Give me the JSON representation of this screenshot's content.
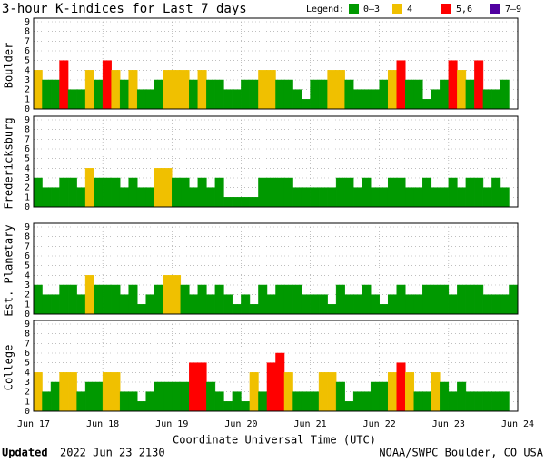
{
  "title": "3-hour K-indices for Last 7 days",
  "legend_title": "Legend:",
  "legend": [
    {
      "label": "0–3",
      "color": "#009900",
      "min": 0,
      "max": 3
    },
    {
      "label": "4",
      "color": "#f0c000",
      "min": 4,
      "max": 4
    },
    {
      "label": "5,6",
      "color": "#ff0000",
      "min": 5,
      "max": 6
    },
    {
      "label": "7–9",
      "color": "#5000a0",
      "min": 7,
      "max": 9
    }
  ],
  "xlabel": "Coordinate Universal Time (UTC)",
  "footer": {
    "updated_label": "Updated",
    "updated": "2022 Jun 23 2130",
    "credit": "NOAA/SWPC Boulder, CO USA"
  },
  "chart_data": [
    {
      "type": "bar",
      "ylabel": "Boulder",
      "ylim": [
        0,
        9
      ],
      "yticks": [
        0,
        1,
        2,
        3,
        4,
        5,
        6,
        7,
        8,
        9
      ],
      "grid": true,
      "values": [
        4,
        3,
        3,
        5,
        2,
        2,
        4,
        3,
        5,
        4,
        3,
        4,
        2,
        2,
        3,
        4,
        4,
        4,
        3,
        4,
        3,
        3,
        2,
        2,
        3,
        3,
        4,
        4,
        3,
        3,
        2,
        1,
        3,
        3,
        4,
        4,
        3,
        2,
        2,
        2,
        3,
        4,
        5,
        3,
        3,
        1,
        2,
        3,
        5,
        4,
        3,
        5,
        2,
        2,
        3,
        0
      ]
    },
    {
      "type": "bar",
      "ylabel": "Fredericksburg",
      "ylim": [
        0,
        9
      ],
      "yticks": [
        0,
        1,
        2,
        3,
        4,
        5,
        6,
        7,
        8,
        9
      ],
      "grid": true,
      "values": [
        3,
        2,
        2,
        3,
        3,
        2,
        4,
        3,
        3,
        3,
        2,
        3,
        2,
        2,
        4,
        4,
        3,
        3,
        2,
        3,
        2,
        3,
        1,
        1,
        1,
        1,
        3,
        3,
        3,
        3,
        2,
        2,
        2,
        2,
        2,
        3,
        3,
        2,
        3,
        2,
        2,
        3,
        3,
        2,
        2,
        3,
        2,
        2,
        3,
        2,
        3,
        3,
        2,
        3,
        2,
        0
      ]
    },
    {
      "type": "bar",
      "ylabel": "Est. Planetary",
      "ylim": [
        0,
        9
      ],
      "yticks": [
        0,
        1,
        2,
        3,
        4,
        5,
        6,
        7,
        8,
        9
      ],
      "grid": true,
      "values": [
        3,
        2,
        2,
        3,
        3,
        2,
        4,
        3,
        3,
        3,
        2,
        3,
        1,
        2,
        3,
        4,
        4,
        3,
        2,
        3,
        2,
        3,
        2,
        1,
        2,
        1,
        3,
        2,
        3,
        3,
        3,
        2,
        2,
        2,
        1,
        3,
        2,
        2,
        3,
        2,
        1,
        2,
        3,
        2,
        2,
        3,
        3,
        3,
        2,
        3,
        3,
        3,
        2,
        2,
        2,
        3
      ]
    },
    {
      "type": "bar",
      "ylabel": "College",
      "ylim": [
        0,
        9
      ],
      "yticks": [
        0,
        1,
        2,
        3,
        4,
        5,
        6,
        7,
        8,
        9
      ],
      "grid": true,
      "values": [
        4,
        2,
        3,
        4,
        4,
        2,
        3,
        3,
        4,
        4,
        2,
        2,
        1,
        2,
        3,
        3,
        3,
        3,
        5,
        5,
        3,
        2,
        1,
        2,
        1,
        4,
        2,
        5,
        6,
        4,
        2,
        2,
        2,
        4,
        4,
        3,
        1,
        2,
        2,
        3,
        3,
        4,
        5,
        4,
        2,
        2,
        4,
        3,
        2,
        3,
        2,
        2,
        2,
        2,
        2,
        0
      ],
      "xlim": [
        0,
        7
      ],
      "xticks": [
        {
          "value": 0,
          "label": "Jun 17"
        },
        {
          "value": 1,
          "label": "Jun 18"
        },
        {
          "value": 2,
          "label": "Jun 19"
        },
        {
          "value": 3,
          "label": "Jun 20"
        },
        {
          "value": 4,
          "label": "Jun 21"
        },
        {
          "value": 5,
          "label": "Jun 22"
        },
        {
          "value": 6,
          "label": "Jun 23"
        },
        {
          "value": 7,
          "label": "Jun 24"
        }
      ]
    }
  ]
}
